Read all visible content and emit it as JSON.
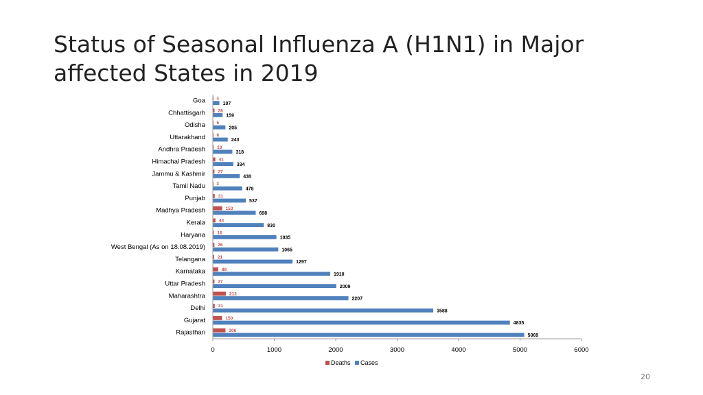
{
  "slide": {
    "title": "Status of Seasonal Influenza A (H1N1) in Major affected States in 2019",
    "page_number": "20"
  },
  "colors": {
    "deaths": "#c0504d",
    "cases": "#4f81bd",
    "axis": "#999999",
    "text": "#000000"
  },
  "chart_data": {
    "type": "bar",
    "orientation": "horizontal",
    "categories": [
      "Goa",
      "Chhattisgarh",
      "Odisha",
      "Uttarakhand",
      "Andhra Pradesh",
      "Himachal Pradesh",
      "Jammu & Kashmir",
      "Tamil Nadu",
      "Punjab",
      "Madhya Pradesh",
      "Kerala",
      "Haryana",
      "West Bengal (As on 18.08.2019)",
      "Telangana",
      "Karnataka",
      "Uttar Pradesh",
      "Maharashtra",
      "Delhi",
      "Gujarat",
      "Rajasthan"
    ],
    "series": [
      {
        "name": "Deaths",
        "values": [
          3,
          28,
          5,
          6,
          13,
          41,
          27,
          3,
          31,
          153,
          43,
          16,
          26,
          21,
          88,
          27,
          212,
          31,
          150,
          206
        ]
      },
      {
        "name": "Cases",
        "values": [
          107,
          159,
          205,
          243,
          318,
          334,
          438,
          478,
          537,
          698,
          830,
          1035,
          1065,
          1297,
          1910,
          2009,
          2207,
          3588,
          4835,
          5069
        ]
      }
    ],
    "xlim": [
      0,
      6000
    ],
    "xticks": [
      "0",
      "1000",
      "2000",
      "3000",
      "4000",
      "5000",
      "6000"
    ],
    "data_labels": true,
    "gridlines": false,
    "legend": {
      "position": "bottom",
      "entries": [
        "Deaths",
        "Cases"
      ]
    }
  }
}
